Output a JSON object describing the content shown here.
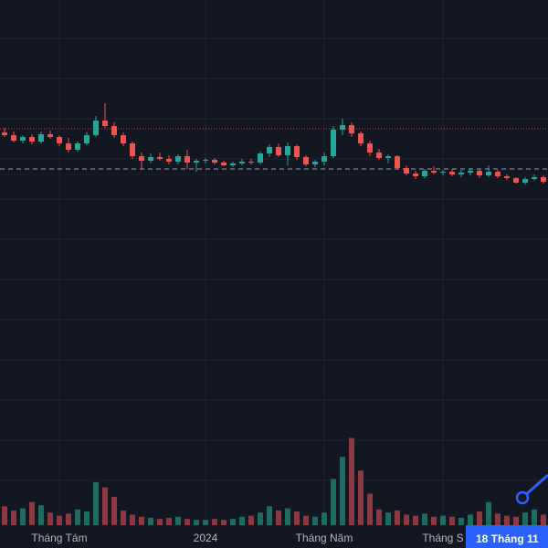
{
  "chart_data": {
    "type": "candlestick",
    "categories": [
      null,
      null,
      null,
      null,
      null,
      null,
      "Tháng Tám",
      null,
      null,
      null,
      null,
      null,
      null,
      null,
      null,
      null,
      null,
      null,
      null,
      null,
      null,
      null,
      "2024",
      null,
      null,
      null,
      null,
      null,
      null,
      null,
      null,
      null,
      null,
      null,
      null,
      "Tháng Năm",
      null,
      null,
      null,
      null,
      null,
      null,
      null,
      null,
      null,
      null,
      null,
      null,
      "Tháng S",
      null,
      null,
      null,
      null,
      null,
      null,
      null,
      null,
      null,
      null,
      null
    ],
    "open": [
      45.5,
      45.2,
      44.6,
      45.0,
      44.5,
      45.3,
      45.0,
      44.3,
      43.6,
      44.3,
      45.2,
      46.8,
      46.2,
      45.2,
      44.3,
      42.9,
      42.4,
      42.8,
      42.6,
      42.3,
      42.9,
      42.2,
      42.4,
      42.5,
      42.2,
      41.9,
      42.1,
      42.3,
      42.2,
      43.2,
      43.9,
      43.0,
      44.0,
      42.8,
      42.0,
      42.3,
      42.9,
      45.8,
      46.3,
      45.4,
      44.3,
      43.3,
      42.7,
      42.9,
      41.6,
      41.0,
      40.7,
      41.3,
      41.1,
      41.2,
      40.9,
      41.1,
      41.3,
      40.8,
      41.2,
      40.7,
      40.5,
      40.0,
      40.4,
      40.6
    ],
    "high": [
      46.0,
      45.6,
      45.2,
      45.3,
      45.6,
      45.7,
      45.2,
      44.9,
      44.5,
      45.5,
      47.3,
      48.7,
      46.6,
      45.5,
      44.5,
      43.3,
      43.2,
      43.3,
      43.0,
      43.1,
      43.6,
      42.6,
      42.7,
      42.7,
      42.4,
      42.3,
      42.6,
      42.6,
      43.4,
      44.2,
      44.3,
      44.4,
      44.2,
      43.0,
      42.5,
      43.3,
      46.2,
      47.0,
      46.6,
      45.6,
      44.6,
      43.7,
      43.1,
      43.0,
      41.9,
      41.3,
      41.5,
      41.8,
      41.4,
      41.5,
      41.4,
      41.6,
      41.4,
      41.9,
      41.4,
      40.9,
      40.6,
      40.6,
      40.9,
      40.8
    ],
    "low": [
      45.0,
      44.4,
      44.3,
      44.2,
      44.3,
      44.8,
      44.0,
      43.3,
      43.4,
      44.1,
      45.0,
      46.0,
      44.9,
      44.0,
      42.6,
      41.5,
      42.1,
      42.4,
      42.0,
      42.0,
      41.5,
      41.2,
      42.1,
      42.0,
      41.8,
      41.7,
      41.9,
      42.0,
      42.0,
      42.8,
      42.8,
      41.9,
      42.5,
      41.8,
      41.7,
      41.9,
      42.7,
      45.2,
      45.0,
      44.0,
      42.9,
      42.5,
      42.1,
      41.4,
      40.8,
      40.4,
      40.5,
      40.9,
      40.8,
      40.7,
      40.6,
      40.8,
      40.5,
      40.6,
      40.5,
      40.3,
      39.9,
      39.8,
      40.2,
      39.9
    ],
    "close": [
      45.2,
      44.6,
      45.0,
      44.5,
      45.3,
      45.0,
      44.3,
      43.6,
      44.3,
      45.2,
      46.8,
      46.2,
      45.2,
      44.3,
      42.9,
      42.4,
      42.8,
      42.6,
      42.3,
      42.9,
      42.2,
      42.4,
      42.5,
      42.2,
      41.9,
      42.1,
      42.3,
      42.2,
      43.2,
      43.9,
      43.0,
      44.0,
      42.8,
      42.0,
      42.3,
      42.9,
      45.8,
      46.3,
      45.4,
      44.3,
      43.3,
      42.7,
      42.9,
      41.6,
      41.0,
      40.7,
      41.3,
      41.1,
      41.2,
      40.9,
      41.1,
      41.3,
      40.8,
      41.2,
      40.7,
      40.5,
      40.0,
      40.4,
      40.6,
      40.1
    ],
    "volume": [
      18,
      14,
      16,
      22,
      19,
      12,
      9,
      11,
      15,
      13,
      41,
      36,
      27,
      14,
      10,
      8,
      7,
      6,
      7,
      8,
      6,
      5,
      5,
      6,
      5,
      6,
      8,
      9,
      12,
      18,
      14,
      16,
      13,
      9,
      8,
      12,
      44,
      65,
      83,
      52,
      30,
      15,
      12,
      14,
      10,
      9,
      11,
      8,
      9,
      8,
      7,
      10,
      13,
      22,
      11,
      9,
      8,
      12,
      15,
      10
    ],
    "ylim": [
      2.5,
      60
    ],
    "volume_ylim": [
      0,
      500
    ],
    "up_color": "#26a69a",
    "down_color": "#ef5350",
    "volume_up_color": "#1e6b62",
    "volume_down_color": "#8b3842",
    "price_lines": [
      {
        "value": 45.9,
        "style": "dotted",
        "color": "#f23645"
      },
      {
        "value": 41.5,
        "style": "dashed",
        "color": "#9598a1"
      }
    ],
    "crosshair_label": "18 Tháng 11"
  }
}
